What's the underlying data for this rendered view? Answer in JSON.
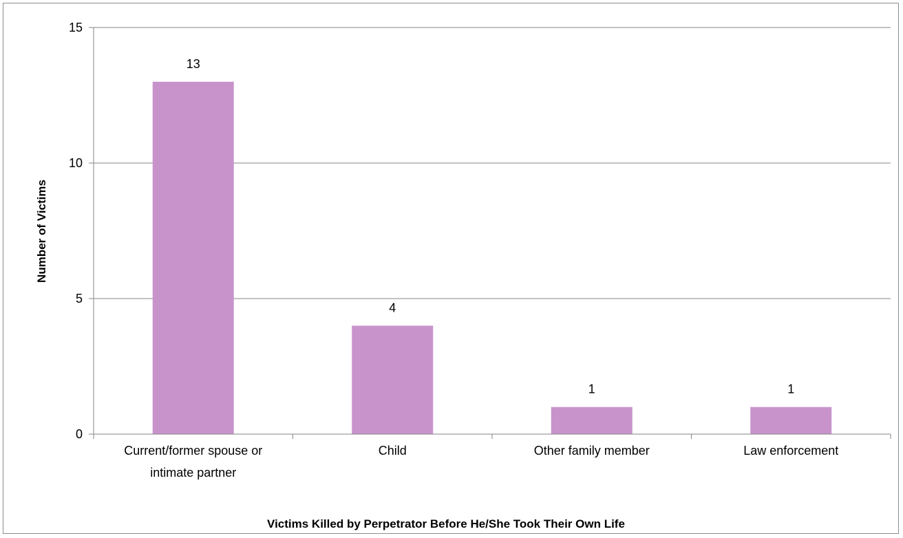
{
  "chart_data": {
    "type": "bar",
    "categories": [
      "Current/former spouse or intimate partner",
      "Child",
      "Other family member",
      "Law enforcement"
    ],
    "category_label_lines": [
      [
        "Current/former spouse or",
        "intimate partner"
      ],
      [
        "Child"
      ],
      [
        "Other family member"
      ],
      [
        "Law enforcement"
      ]
    ],
    "values": [
      13,
      4,
      1,
      1
    ],
    "data_labels": [
      "13",
      "4",
      "1",
      "1"
    ],
    "xlabel": "Victims Killed by Perpetrator Before He/She Took Their Own Life",
    "ylabel": "Number of Victims",
    "ylim": [
      0,
      15
    ],
    "yticks": [
      0,
      5,
      10,
      15
    ],
    "grid": true,
    "bar_color": "#c893cb",
    "gridline_color": "#868686",
    "axis_color": "#868686"
  }
}
